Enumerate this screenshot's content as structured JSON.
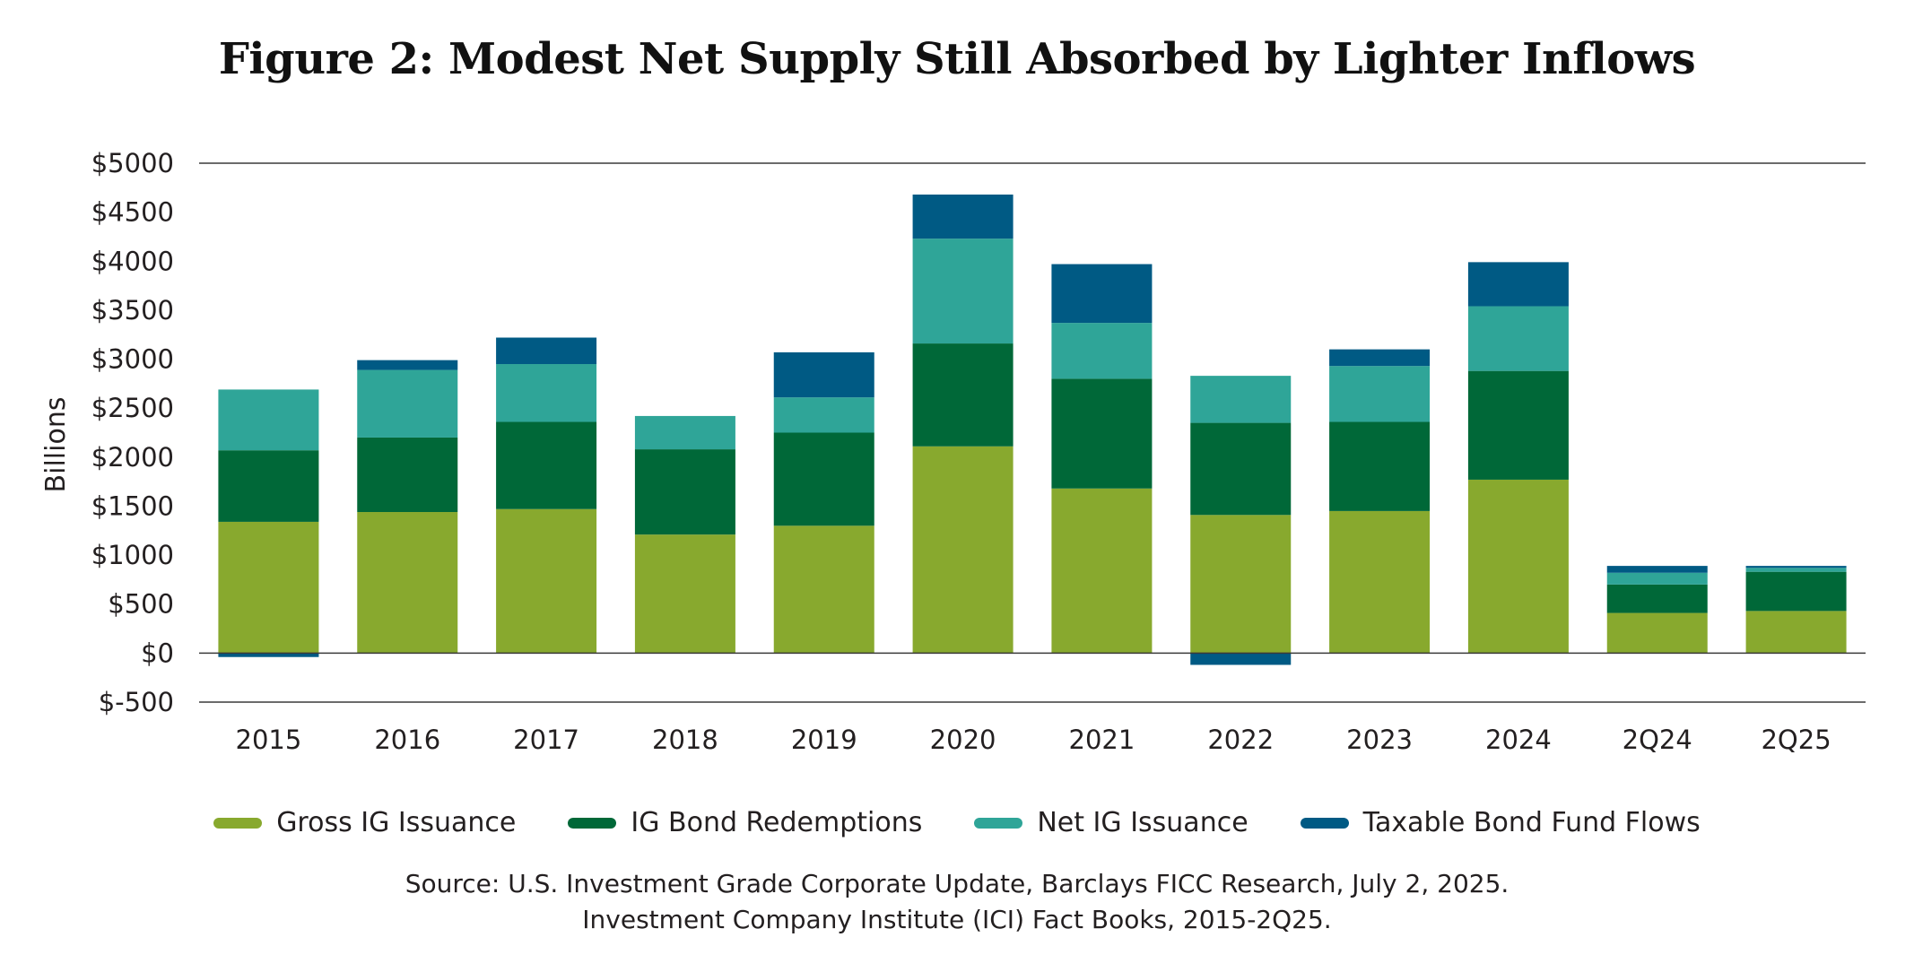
{
  "title": "Figure 2: Modest Net Supply Still Absorbed by Lighter Inflows",
  "source": {
    "line1": "Source: U.S. Investment Grade Corporate Update, Barclays FICC Research, July 2, 2025.",
    "line2": "Investment Company Institute (ICI) Fact Books, 2015-2Q25."
  },
  "chart_data": {
    "type": "bar",
    "stacked": true,
    "title": "Figure 2: Modest Net Supply Still Absorbed by Lighter Inflows",
    "xlabel": "",
    "ylabel": "Billions",
    "ylim": [
      -500,
      5000
    ],
    "y_ticks": [
      {
        "value": 5000,
        "label": "$5000"
      },
      {
        "value": 4500,
        "label": "$4500"
      },
      {
        "value": 4000,
        "label": "$4000"
      },
      {
        "value": 3500,
        "label": "$3500"
      },
      {
        "value": 3000,
        "label": "$3000"
      },
      {
        "value": 2500,
        "label": "$2500"
      },
      {
        "value": 2000,
        "label": "$2000"
      },
      {
        "value": 1500,
        "label": "$1500"
      },
      {
        "value": 1000,
        "label": "$1000"
      },
      {
        "value": 500,
        "label": "$500"
      },
      {
        "value": 0,
        "label": "$0"
      },
      {
        "value": -500,
        "label": "$-500"
      }
    ],
    "grid": "major horizontal at 5000 and -500 plus zero line",
    "legend_position": "bottom",
    "categories": [
      "2015",
      "2016",
      "2017",
      "2018",
      "2019",
      "2020",
      "2021",
      "2022",
      "2023",
      "2024",
      "2Q24",
      "2Q25"
    ],
    "series": [
      {
        "name": "Gross IG Issuance",
        "color": "#88a92e",
        "values": [
          1340,
          1440,
          1470,
          1210,
          1300,
          2110,
          1680,
          1410,
          1450,
          1770,
          410,
          430
        ]
      },
      {
        "name": "IG Bond Redemptions",
        "color": "#006838",
        "values": [
          730,
          760,
          890,
          870,
          950,
          1050,
          1120,
          940,
          910,
          1110,
          290,
          400
        ]
      },
      {
        "name": "Net IG Issuance",
        "color": "#2fa598",
        "values": [
          620,
          690,
          590,
          340,
          360,
          1070,
          570,
          480,
          570,
          660,
          120,
          40
        ]
      },
      {
        "name": "Taxable Bond Fund Flows",
        "color": "#005a84",
        "values": [
          -40,
          100,
          270,
          0,
          460,
          450,
          600,
          -120,
          170,
          450,
          70,
          20
        ]
      }
    ]
  }
}
